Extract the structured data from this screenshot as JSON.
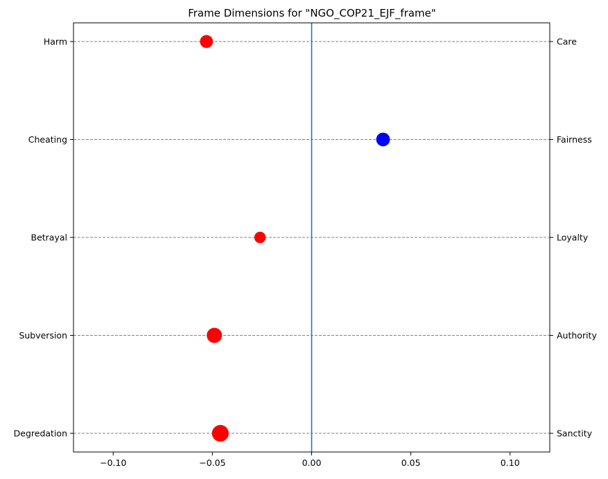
{
  "chart_data": {
    "type": "scatter",
    "title": "Frame Dimensions for \"NGO_COP21_EJF_frame\"",
    "xlim": [
      -0.12,
      0.12
    ],
    "x_ticks": [
      -0.1,
      -0.05,
      0.0,
      0.05,
      0.1
    ],
    "x_tick_labels": [
      "−0.10",
      "−0.05",
      "0.00",
      "0.05",
      "0.10"
    ],
    "left_labels": [
      "Harm",
      "Cheating",
      "Betrayal",
      "Subversion",
      "Degredation"
    ],
    "right_labels": [
      "Care",
      "Fairness",
      "Loyalty",
      "Authority",
      "Sanctity"
    ],
    "grid": "horizontal dashed",
    "reference_line_x": 0.0,
    "points": [
      {
        "dimension": "Care",
        "x": -0.053,
        "relative_size": 0.85,
        "color": "#ff0000"
      },
      {
        "dimension": "Fairness",
        "x": 0.036,
        "relative_size": 0.9,
        "color": "#0000ff"
      },
      {
        "dimension": "Loyalty",
        "x": -0.026,
        "relative_size": 0.75,
        "color": "#ff0000"
      },
      {
        "dimension": "Authority",
        "x": -0.049,
        "relative_size": 1.0,
        "color": "#ff0000"
      },
      {
        "dimension": "Sanctity",
        "x": -0.046,
        "relative_size": 1.1,
        "color": "#ff0000"
      }
    ],
    "colors": {
      "negative": "#ff0000",
      "positive": "#0000ff",
      "reference_line": "#1f77b4",
      "grid": "#808080"
    }
  }
}
